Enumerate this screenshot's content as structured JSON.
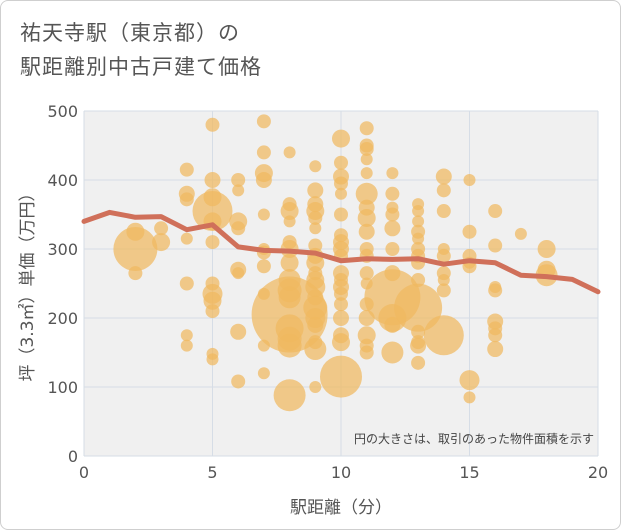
{
  "title": "祐天寺駅（東京都）の\n駅距離別中古戸建て価格",
  "chart_data": {
    "type": "scatter",
    "xlabel": "駅距離（分）",
    "ylabel": "坪（3.3㎡）単価（万円）",
    "xlim": [
      0,
      20
    ],
    "ylim": [
      0,
      500
    ],
    "xticks": [
      0,
      5,
      10,
      15,
      20
    ],
    "yticks": [
      0,
      100,
      200,
      300,
      400,
      500
    ],
    "grid": true,
    "annotation": "円の大きさは、取引のあった物件面積を示す",
    "colors": {
      "bubble": "#f0b860",
      "trend": "#d0705a",
      "plot_bg": "#f0f0f0"
    },
    "points": [
      [
        2,
        300,
        22
      ],
      [
        2,
        325,
        9
      ],
      [
        2,
        265,
        7
      ],
      [
        3,
        310,
        9
      ],
      [
        3,
        330,
        7
      ],
      [
        4,
        415,
        7
      ],
      [
        4,
        380,
        8
      ],
      [
        4,
        372,
        7
      ],
      [
        4,
        315,
        6
      ],
      [
        4,
        250,
        7
      ],
      [
        4,
        175,
        6
      ],
      [
        4,
        160,
        6
      ],
      [
        5,
        480,
        7
      ],
      [
        5,
        400,
        8
      ],
      [
        5,
        375,
        9
      ],
      [
        5,
        355,
        20
      ],
      [
        5,
        340,
        9
      ],
      [
        5,
        310,
        7
      ],
      [
        5,
        250,
        7
      ],
      [
        5,
        235,
        10
      ],
      [
        5,
        225,
        9
      ],
      [
        5,
        210,
        7
      ],
      [
        5,
        148,
        6
      ],
      [
        5,
        140,
        6
      ],
      [
        6,
        400,
        7
      ],
      [
        6,
        385,
        6
      ],
      [
        6,
        340,
        9
      ],
      [
        6,
        330,
        7
      ],
      [
        6,
        270,
        8
      ],
      [
        6,
        265,
        6
      ],
      [
        6,
        180,
        8
      ],
      [
        6,
        108,
        7
      ],
      [
        7,
        485,
        7
      ],
      [
        7,
        440,
        7
      ],
      [
        7,
        410,
        9
      ],
      [
        7,
        400,
        8
      ],
      [
        7,
        350,
        6
      ],
      [
        7,
        300,
        6
      ],
      [
        7,
        295,
        7
      ],
      [
        7,
        275,
        7
      ],
      [
        7,
        235,
        6
      ],
      [
        7,
        160,
        6
      ],
      [
        7,
        120,
        6
      ],
      [
        8,
        440,
        6
      ],
      [
        8,
        365,
        7
      ],
      [
        8,
        355,
        9
      ],
      [
        8,
        340,
        6
      ],
      [
        8,
        310,
        7
      ],
      [
        8,
        300,
        9
      ],
      [
        8,
        280,
        9
      ],
      [
        8,
        255,
        11
      ],
      [
        8,
        240,
        12
      ],
      [
        8,
        230,
        11
      ],
      [
        8,
        205,
        38
      ],
      [
        8,
        185,
        14
      ],
      [
        8,
        170,
        12
      ],
      [
        8,
        160,
        12
      ],
      [
        8,
        88,
        16
      ],
      [
        9,
        420,
        6
      ],
      [
        9,
        385,
        8
      ],
      [
        9,
        365,
        8
      ],
      [
        9,
        355,
        9
      ],
      [
        9,
        345,
        7
      ],
      [
        9,
        330,
        6
      ],
      [
        9,
        305,
        7
      ],
      [
        9,
        290,
        8
      ],
      [
        9,
        280,
        9
      ],
      [
        9,
        265,
        7
      ],
      [
        9,
        255,
        9
      ],
      [
        9,
        245,
        10
      ],
      [
        9,
        230,
        8
      ],
      [
        9,
        215,
        12
      ],
      [
        9,
        200,
        10
      ],
      [
        9,
        190,
        8
      ],
      [
        9,
        165,
        7
      ],
      [
        9,
        155,
        11
      ],
      [
        9,
        100,
        6
      ],
      [
        10,
        460,
        9
      ],
      [
        10,
        425,
        7
      ],
      [
        10,
        405,
        8
      ],
      [
        10,
        395,
        7
      ],
      [
        10,
        380,
        6
      ],
      [
        10,
        350,
        7
      ],
      [
        10,
        320,
        7
      ],
      [
        10,
        310,
        8
      ],
      [
        10,
        300,
        8
      ],
      [
        10,
        290,
        7
      ],
      [
        10,
        265,
        8
      ],
      [
        10,
        255,
        7
      ],
      [
        10,
        245,
        8
      ],
      [
        10,
        235,
        7
      ],
      [
        10,
        220,
        7
      ],
      [
        10,
        200,
        8
      ],
      [
        10,
        175,
        8
      ],
      [
        10,
        165,
        9
      ],
      [
        10,
        115,
        21
      ],
      [
        11,
        475,
        7
      ],
      [
        11,
        450,
        7
      ],
      [
        11,
        445,
        7
      ],
      [
        11,
        430,
        6
      ],
      [
        11,
        410,
        6
      ],
      [
        11,
        380,
        11
      ],
      [
        11,
        360,
        8
      ],
      [
        11,
        345,
        9
      ],
      [
        11,
        325,
        8
      ],
      [
        11,
        300,
        7
      ],
      [
        11,
        290,
        7
      ],
      [
        11,
        265,
        7
      ],
      [
        11,
        250,
        6
      ],
      [
        11,
        220,
        7
      ],
      [
        11,
        200,
        8
      ],
      [
        11,
        175,
        9
      ],
      [
        11,
        160,
        7
      ],
      [
        11,
        150,
        7
      ],
      [
        12,
        410,
        6
      ],
      [
        12,
        380,
        7
      ],
      [
        12,
        360,
        6
      ],
      [
        12,
        350,
        7
      ],
      [
        12,
        330,
        8
      ],
      [
        12,
        300,
        7
      ],
      [
        12,
        265,
        8
      ],
      [
        12,
        230,
        28
      ],
      [
        12,
        200,
        14
      ],
      [
        12,
        190,
        8
      ],
      [
        12,
        150,
        11
      ],
      [
        13,
        365,
        6
      ],
      [
        13,
        355,
        6
      ],
      [
        13,
        340,
        6
      ],
      [
        13,
        325,
        7
      ],
      [
        13,
        315,
        6
      ],
      [
        13,
        300,
        7
      ],
      [
        13,
        290,
        7
      ],
      [
        13,
        280,
        7
      ],
      [
        13,
        255,
        7
      ],
      [
        13,
        215,
        24
      ],
      [
        13,
        180,
        7
      ],
      [
        13,
        165,
        7
      ],
      [
        13,
        160,
        8
      ],
      [
        13,
        135,
        7
      ],
      [
        14,
        405,
        8
      ],
      [
        14,
        385,
        7
      ],
      [
        14,
        355,
        7
      ],
      [
        14,
        300,
        6
      ],
      [
        14,
        290,
        7
      ],
      [
        14,
        265,
        7
      ],
      [
        14,
        255,
        6
      ],
      [
        14,
        240,
        7
      ],
      [
        14,
        175,
        20
      ],
      [
        15,
        400,
        6
      ],
      [
        15,
        325,
        7
      ],
      [
        15,
        290,
        7
      ],
      [
        15,
        280,
        6
      ],
      [
        15,
        275,
        7
      ],
      [
        15,
        110,
        10
      ],
      [
        15,
        85,
        6
      ],
      [
        16,
        355,
        7
      ],
      [
        16,
        305,
        7
      ],
      [
        16,
        245,
        6
      ],
      [
        16,
        240,
        7
      ],
      [
        16,
        195,
        8
      ],
      [
        16,
        185,
        7
      ],
      [
        16,
        175,
        7
      ],
      [
        16,
        155,
        8
      ],
      [
        17,
        322,
        6
      ],
      [
        18,
        300,
        9
      ],
      [
        18,
        270,
        9
      ],
      [
        18,
        262,
        11
      ]
    ],
    "trend": [
      [
        0,
        340
      ],
      [
        1,
        353
      ],
      [
        2,
        346
      ],
      [
        3,
        347
      ],
      [
        4,
        328
      ],
      [
        5,
        335
      ],
      [
        6,
        303
      ],
      [
        7,
        298
      ],
      [
        8,
        297
      ],
      [
        9,
        294
      ],
      [
        10,
        283
      ],
      [
        11,
        286
      ],
      [
        12,
        285
      ],
      [
        13,
        286
      ],
      [
        14,
        278
      ],
      [
        15,
        283
      ],
      [
        16,
        280
      ],
      [
        17,
        262
      ],
      [
        18,
        260
      ],
      [
        19,
        256
      ],
      [
        20,
        238
      ]
    ]
  }
}
